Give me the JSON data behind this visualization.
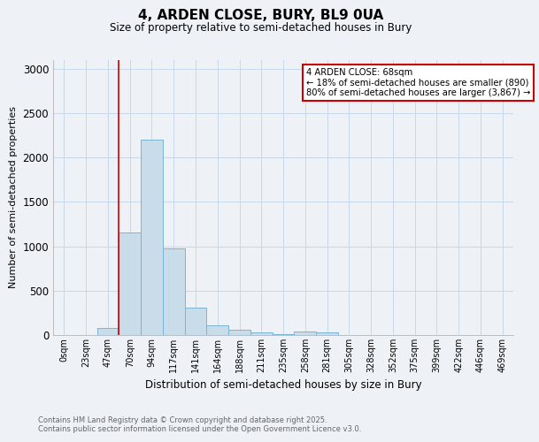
{
  "title": "4, ARDEN CLOSE, BURY, BL9 0UA",
  "subtitle": "Size of property relative to semi-detached houses in Bury",
  "xlabel": "Distribution of semi-detached houses by size in Bury",
  "ylabel": "Number of semi-detached properties",
  "footnote1": "Contains HM Land Registry data © Crown copyright and database right 2025.",
  "footnote2": "Contains public sector information licensed under the Open Government Licence v3.0.",
  "bar_labels": [
    "0sqm",
    "23sqm",
    "47sqm",
    "70sqm",
    "94sqm",
    "117sqm",
    "141sqm",
    "164sqm",
    "188sqm",
    "211sqm",
    "235sqm",
    "258sqm",
    "281sqm",
    "305sqm",
    "328sqm",
    "352sqm",
    "375sqm",
    "399sqm",
    "422sqm",
    "446sqm",
    "469sqm"
  ],
  "bar_values": [
    0,
    0,
    75,
    1150,
    2200,
    975,
    305,
    105,
    55,
    30,
    15,
    35,
    30,
    0,
    0,
    0,
    0,
    0,
    0,
    0,
    0
  ],
  "bar_color": "#c9dcea",
  "bar_edge_color": "#7ab5d3",
  "ylim": [
    0,
    3100
  ],
  "yticks": [
    0,
    500,
    1000,
    1500,
    2000,
    2500,
    3000
  ],
  "property_line_x": 3.0,
  "annotation_text": "4 ARDEN CLOSE: 68sqm\n← 18% of semi-detached houses are smaller (890)\n80% of semi-detached houses are larger (3,867) →",
  "annotation_box_color": "#ffffff",
  "annotation_box_edge": "#cc0000",
  "vline_color": "#cc0000",
  "grid_color": "#c8d8e8",
  "background_color": "#eef2f7"
}
